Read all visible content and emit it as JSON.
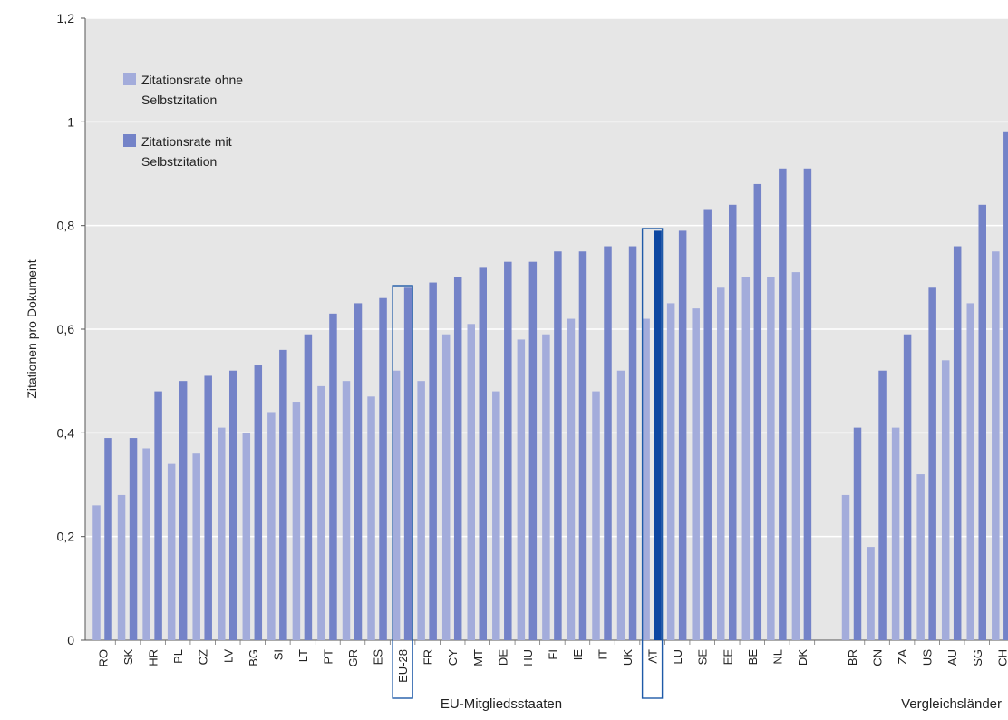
{
  "chart_data": {
    "type": "bar",
    "title": "",
    "xlabel": "",
    "ylabel": "Zitationen pro Dokument",
    "ylim": [
      0,
      1.2
    ],
    "yticks": [
      "0",
      "0,2",
      "0,4",
      "0,6",
      "0,8",
      "1",
      "1,2"
    ],
    "ytick_values": [
      0,
      0.2,
      0.4,
      0.6,
      0.8,
      1.0,
      1.2
    ],
    "grid": true,
    "legend_position": "top-left",
    "groups": [
      {
        "label": "EU-Mitgliedsstaaten",
        "categories": [
          "RO",
          "SK",
          "HR",
          "PL",
          "CZ",
          "LV",
          "BG",
          "SI",
          "LT",
          "PT",
          "GR",
          "ES",
          "EU-28",
          "FR",
          "CY",
          "MT",
          "DE",
          "HU",
          "FI",
          "IE",
          "IT",
          "UK",
          "AT",
          "LU",
          "SE",
          "EE",
          "BE",
          "NL",
          "DK"
        ]
      },
      {
        "label": "Vergleichsländer",
        "categories": [
          "BR",
          "CN",
          "ZA",
          "US",
          "AU",
          "SG",
          "CH"
        ]
      }
    ],
    "categories": [
      "RO",
      "SK",
      "HR",
      "PL",
      "CZ",
      "LV",
      "BG",
      "SI",
      "LT",
      "PT",
      "GR",
      "ES",
      "EU-28",
      "FR",
      "CY",
      "MT",
      "DE",
      "HU",
      "FI",
      "IE",
      "IT",
      "UK",
      "AT",
      "LU",
      "SE",
      "EE",
      "BE",
      "NL",
      "DK",
      "BR",
      "CN",
      "ZA",
      "US",
      "AU",
      "SG",
      "CH"
    ],
    "series": [
      {
        "name": "Zitationsrate ohne Selbstzitation",
        "color": "#a3acdb",
        "values": [
          0.26,
          0.28,
          0.37,
          0.34,
          0.36,
          0.41,
          0.4,
          0.44,
          0.46,
          0.49,
          0.5,
          0.47,
          0.52,
          0.5,
          0.59,
          0.61,
          0.48,
          0.58,
          0.59,
          0.62,
          0.48,
          0.52,
          0.62,
          0.65,
          0.64,
          0.68,
          0.7,
          0.7,
          0.71,
          0.28,
          0.18,
          0.41,
          0.32,
          0.54,
          0.65,
          0.75
        ]
      },
      {
        "name": "Zitationsrate mit Selbstzitation",
        "color": "#7483c8",
        "values": [
          0.39,
          0.39,
          0.48,
          0.5,
          0.51,
          0.52,
          0.53,
          0.56,
          0.59,
          0.63,
          0.65,
          0.66,
          0.68,
          0.69,
          0.7,
          0.72,
          0.73,
          0.73,
          0.75,
          0.75,
          0.76,
          0.76,
          0.79,
          0.79,
          0.83,
          0.84,
          0.88,
          0.91,
          0.91,
          0.41,
          0.52,
          0.59,
          0.68,
          0.76,
          0.84,
          0.98
        ]
      }
    ],
    "highlighted": [
      "EU-28",
      "AT"
    ],
    "highlight_color": "#0d47a1",
    "legend_labels": [
      [
        "Zitationsrate ohne",
        "Selbstzitation"
      ],
      [
        "Zitationsrate mit",
        "Selbstzitation"
      ]
    ]
  }
}
